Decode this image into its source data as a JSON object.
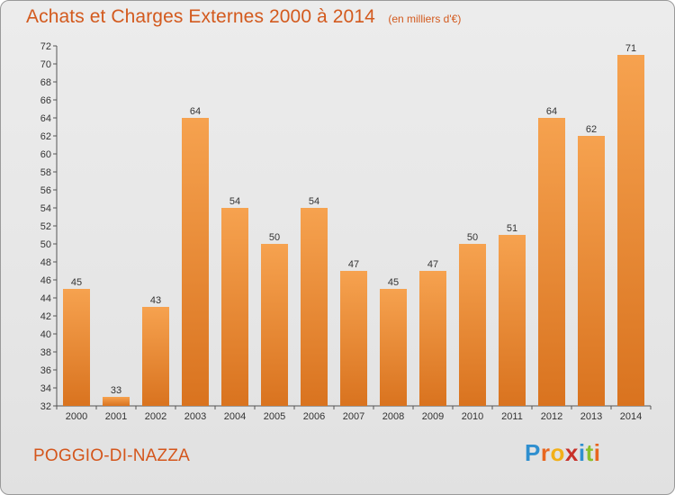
{
  "header": {
    "title": "Achats et Charges Externes 2000 à 2014",
    "unit": "(en milliers d'€)"
  },
  "footer": {
    "town": "POGGIO-DI-NAZZA",
    "brand_letters": [
      "P",
      "r",
      "o",
      "x",
      "i",
      "t",
      "i"
    ],
    "brand_colors": [
      "#2f8fcf",
      "#e8661f",
      "#f2b019",
      "#c8312a",
      "#2f8fcf",
      "#8cbf2a",
      "#e8661f"
    ]
  },
  "chart_data": {
    "type": "bar",
    "title": "Achats et Charges Externes 2000 à 2014",
    "subtitle": "(en milliers d'€)",
    "xlabel": "",
    "ylabel": "",
    "categories": [
      "2000",
      "2001",
      "2002",
      "2003",
      "2004",
      "2005",
      "2006",
      "2007",
      "2008",
      "2009",
      "2010",
      "2011",
      "2012",
      "2013",
      "2014"
    ],
    "values": [
      45,
      33,
      43,
      64,
      54,
      50,
      54,
      47,
      45,
      47,
      50,
      51,
      64,
      62,
      71
    ],
    "ylim": [
      32,
      72
    ],
    "yticks": [
      32,
      34,
      36,
      38,
      40,
      42,
      44,
      46,
      48,
      50,
      52,
      54,
      56,
      58,
      60,
      62,
      64,
      66,
      68,
      70,
      72
    ],
    "grid": false,
    "legend": "none",
    "colors": {
      "bar_top": "#f6a24f",
      "bar_bottom": "#d9731f",
      "text": "#333333",
      "accent": "#d35a1e"
    }
  }
}
